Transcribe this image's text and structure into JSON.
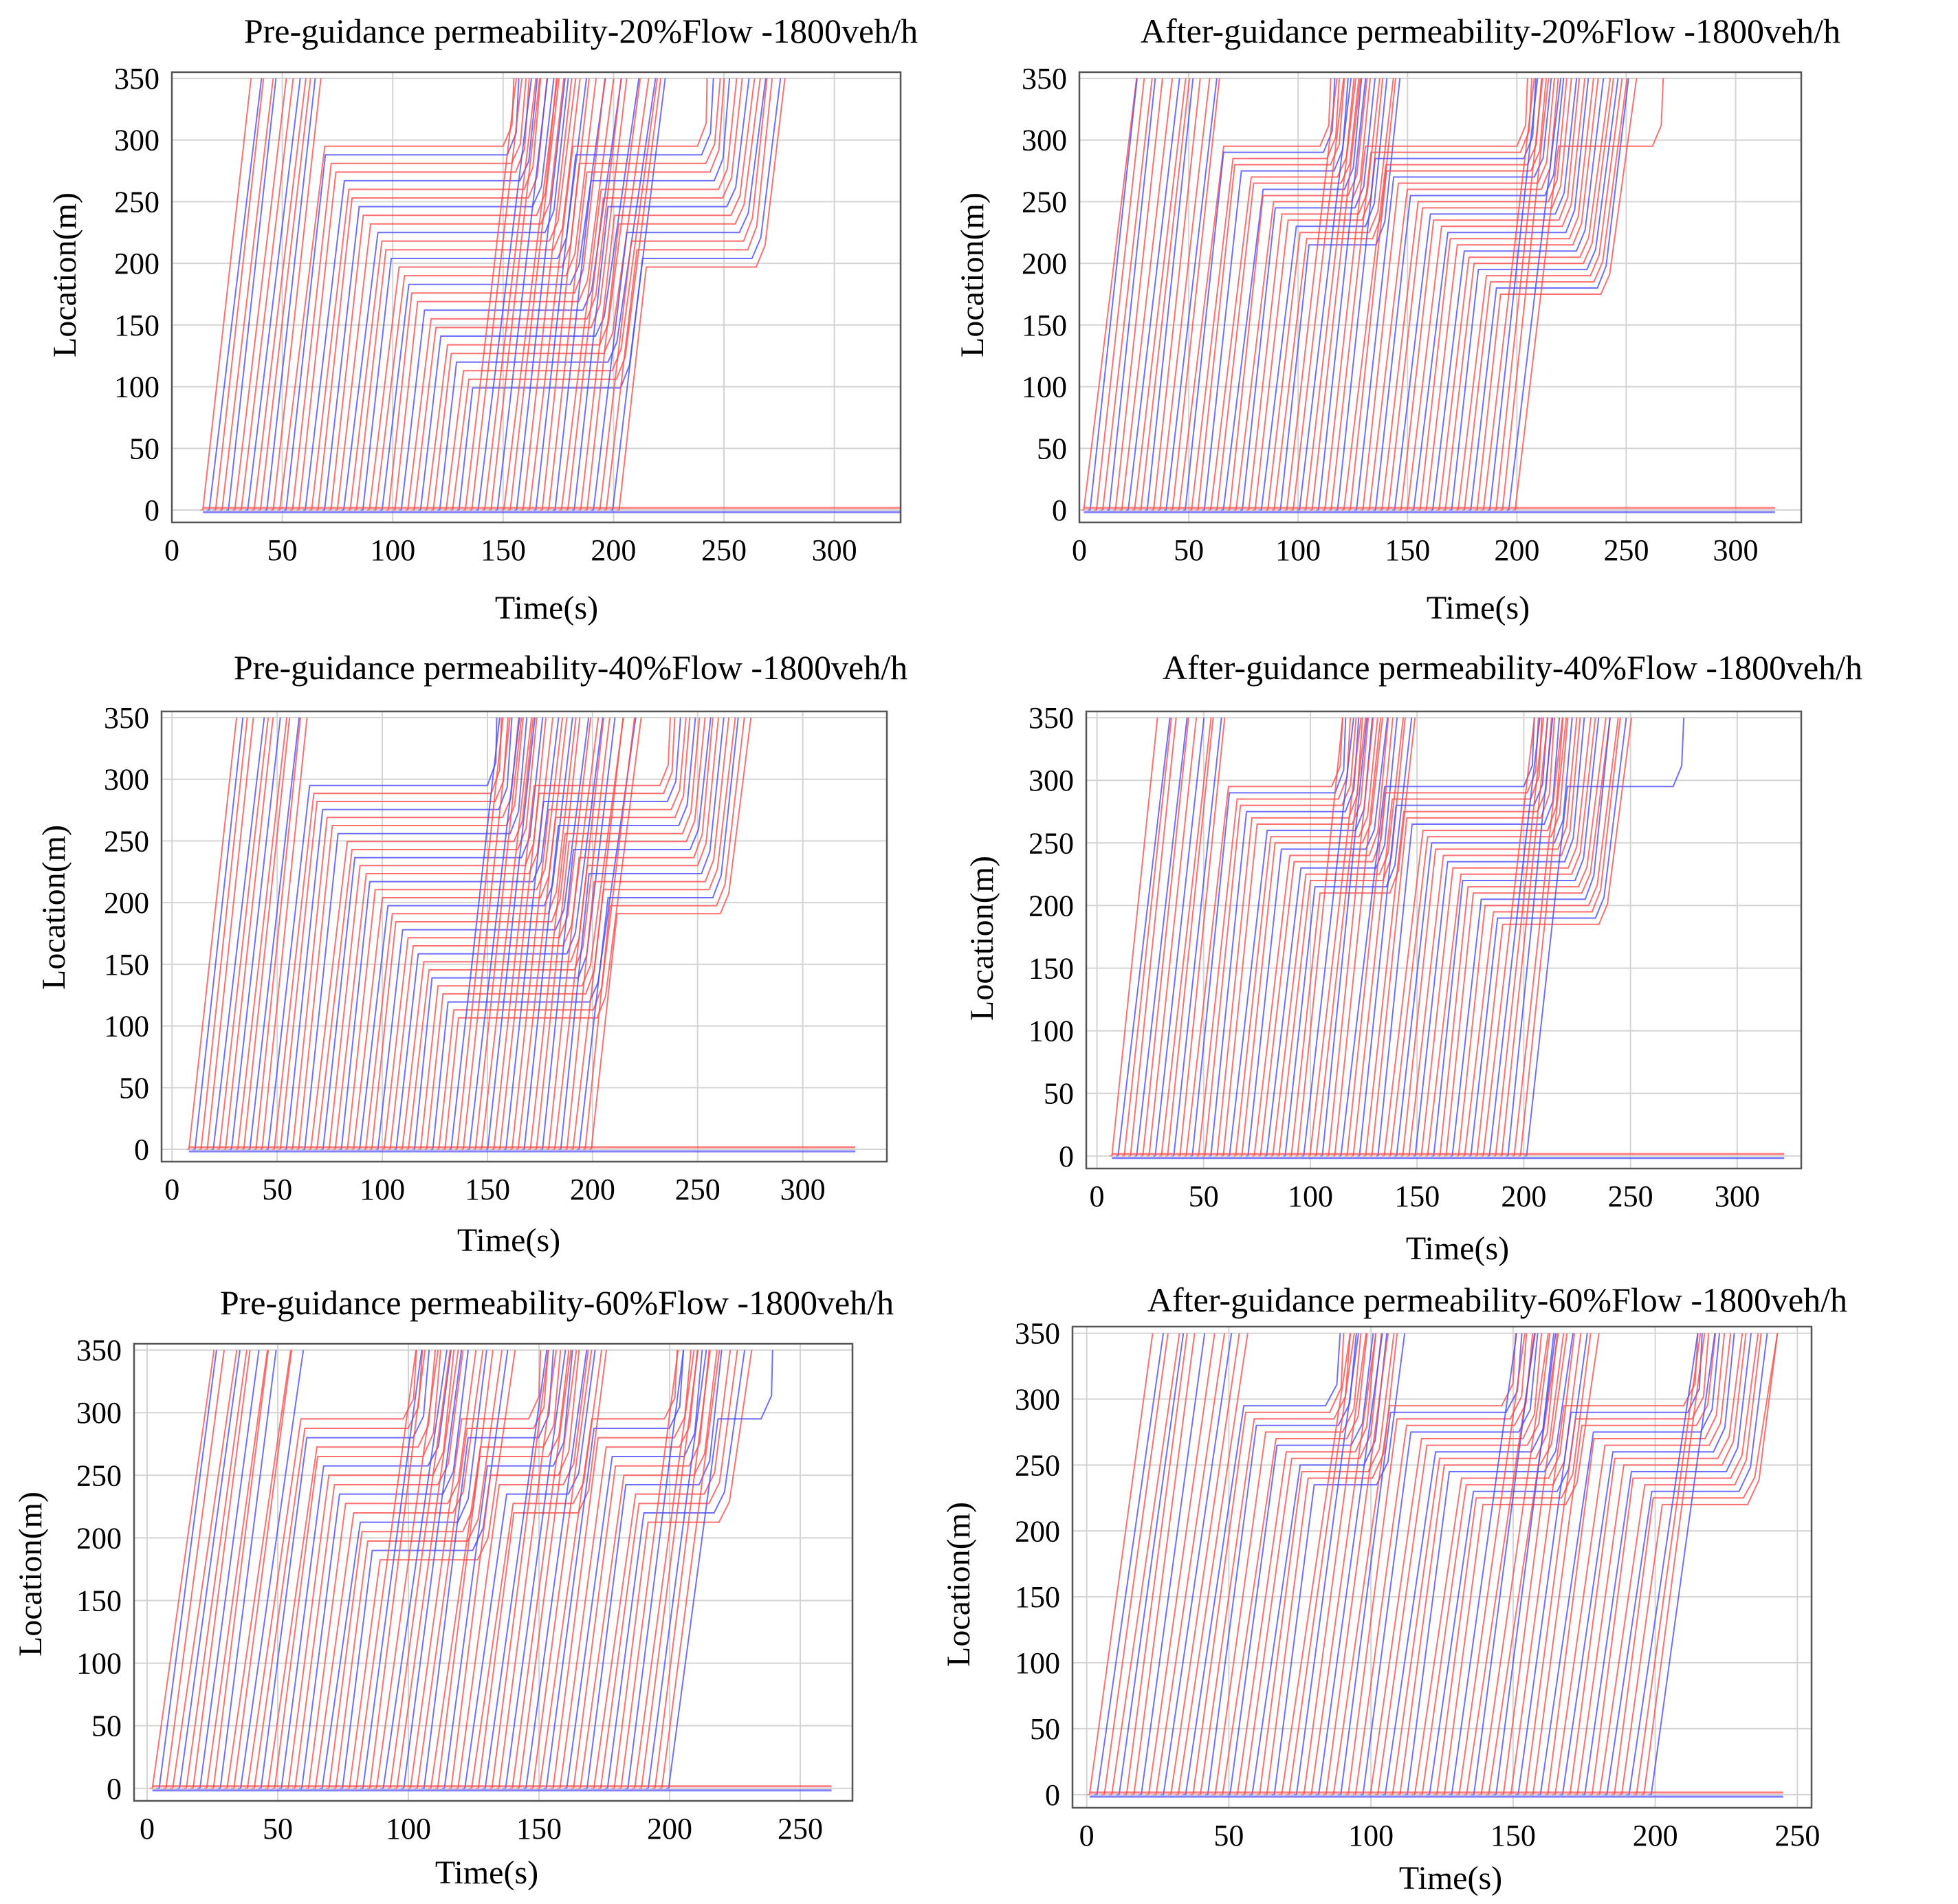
{
  "figure": {
    "description_label": "Vehicle trajectory diagrams, 1800 veh/h"
  },
  "chart_data": [
    {
      "type": "line",
      "panel": "top-left",
      "title": "Pre-guidance permeability-20%Flow -1800veh/h",
      "xlabel": "Time(s)",
      "ylabel": "Location(m)",
      "xlim": [
        0,
        330
      ],
      "ylim": [
        -10,
        355
      ],
      "xticks": [
        0,
        50,
        100,
        150,
        200,
        250,
        300
      ],
      "yticks": [
        0,
        50,
        100,
        150,
        200,
        250,
        300,
        350
      ],
      "grid": true,
      "series_colors": {
        "red": "#ff4b4b",
        "blue": "#4b4bff"
      },
      "pattern": {
        "first_entry": 14,
        "headway": 2.9,
        "free_speed": 15.5,
        "discharge_speed": 11.5,
        "stop_entry_cutoff": 204,
        "end_time": 330,
        "queue_jam_spacing": 7,
        "queue_discharge_headway": 1.9,
        "signals": [
          {
            "stopline": 295,
            "red_start": 68,
            "red_end": 150
          },
          {
            "stopline": 295,
            "red_start": 178,
            "red_end": 238
          },
          {
            "stopline": 295,
            "red_start": 262,
            "red_end": 300
          }
        ]
      }
    },
    {
      "type": "line",
      "panel": "top-right",
      "title": "After-guidance permeability-20%Flow -1800veh/h",
      "xlabel": "Time(s)",
      "ylabel": "Location(m)",
      "xlim": [
        0,
        330
      ],
      "ylim": [
        -10,
        355
      ],
      "xticks": [
        0,
        50,
        100,
        150,
        200,
        250,
        300
      ],
      "yticks": [
        0,
        50,
        100,
        150,
        200,
        250,
        300,
        350
      ],
      "grid": true,
      "series_colors": {
        "red": "#ff4b4b",
        "blue": "#4b4bff"
      },
      "pattern": {
        "first_entry": 2,
        "headway": 2.9,
        "free_speed": 15.5,
        "discharge_speed": 11.5,
        "stop_entry_cutoff": 200,
        "end_time": 318,
        "queue_jam_spacing": 5,
        "queue_discharge_headway": 1.6,
        "signals": [
          {
            "stopline": 292,
            "red_start": 62,
            "red_end": 110
          },
          {
            "stopline": 292,
            "red_start": 130,
            "red_end": 200
          },
          {
            "stopline": 292,
            "red_start": 218,
            "red_end": 262
          }
        ]
      }
    },
    {
      "type": "line",
      "panel": "middle-left",
      "title": "Pre-guidance permeability-40%Flow -1800veh/h",
      "xlabel": "Time(s)",
      "ylabel": "Location(m)",
      "xlim": [
        -5,
        340
      ],
      "ylim": [
        -10,
        355
      ],
      "xticks": [
        0,
        50,
        100,
        150,
        200,
        250,
        300
      ],
      "yticks": [
        0,
        50,
        100,
        150,
        200,
        250,
        300,
        350
      ],
      "grid": true,
      "series_colors": {
        "red": "#ff4b4b",
        "blue": "#4b4bff"
      },
      "pattern": {
        "first_entry": 8,
        "headway": 2.9,
        "free_speed": 15.5,
        "discharge_speed": 11.5,
        "stop_entry_cutoff": 202,
        "end_time": 325,
        "queue_jam_spacing": 6.5,
        "queue_discharge_headway": 1.8,
        "signals": [
          {
            "stopline": 295,
            "red_start": 64,
            "red_end": 150
          },
          {
            "stopline": 295,
            "red_start": 170,
            "red_end": 232
          },
          {
            "stopline": 295,
            "red_start": 254,
            "red_end": 300
          }
        ]
      }
    },
    {
      "type": "line",
      "panel": "middle-right",
      "title": "After-guidance permeability-40%Flow -1800veh/h",
      "xlabel": "Time(s)",
      "ylabel": "Location(m)",
      "xlim": [
        -5,
        330
      ],
      "ylim": [
        -10,
        355
      ],
      "xticks": [
        0,
        50,
        100,
        150,
        200,
        250,
        300
      ],
      "yticks": [
        0,
        50,
        100,
        150,
        200,
        250,
        300,
        350
      ],
      "grid": true,
      "series_colors": {
        "red": "#ff4b4b",
        "blue": "#4b4bff"
      },
      "pattern": {
        "first_entry": 7,
        "headway": 2.9,
        "free_speed": 15.5,
        "discharge_speed": 11.5,
        "stop_entry_cutoff": 202,
        "end_time": 322,
        "queue_jam_spacing": 5,
        "queue_discharge_headway": 1.6,
        "signals": [
          {
            "stopline": 290,
            "red_start": 60,
            "red_end": 110
          },
          {
            "stopline": 290,
            "red_start": 130,
            "red_end": 200
          },
          {
            "stopline": 290,
            "red_start": 220,
            "red_end": 270
          }
        ]
      }
    },
    {
      "type": "line",
      "panel": "bottom-left",
      "title": "Pre-guidance permeability-60%Flow -1800veh/h",
      "xlabel": "Time(s)",
      "ylabel": "Location(m)",
      "xlim": [
        -5,
        270
      ],
      "ylim": [
        -10,
        355
      ],
      "xticks": [
        0,
        50,
        100,
        150,
        200,
        250
      ],
      "yticks": [
        0,
        50,
        100,
        150,
        200,
        250,
        300,
        350
      ],
      "grid": true,
      "series_colors": {
        "red": "#ff4b4b",
        "blue": "#4b4bff"
      },
      "pattern": {
        "first_entry": 2,
        "headway": 2.6,
        "free_speed": 15.5,
        "discharge_speed": 11.5,
        "stop_entry_cutoff": 200,
        "end_time": 262,
        "queue_jam_spacing": 7.5,
        "queue_discharge_headway": 1.9,
        "signals": [
          {
            "stopline": 295,
            "red_start": 58,
            "red_end": 98
          },
          {
            "stopline": 295,
            "red_start": 118,
            "red_end": 146
          },
          {
            "stopline": 295,
            "red_start": 168,
            "red_end": 198
          },
          {
            "stopline": 295,
            "red_start": 216,
            "red_end": 235
          }
        ]
      }
    },
    {
      "type": "line",
      "panel": "bottom-right",
      "title": "After-guidance permeability-60%Flow -1800veh/h",
      "xlabel": "Time(s)",
      "ylabel": "Location(m)",
      "xlim": [
        -5,
        255
      ],
      "ylim": [
        -10,
        355
      ],
      "xticks": [
        0,
        50,
        100,
        150,
        200,
        250
      ],
      "yticks": [
        0,
        50,
        100,
        150,
        200,
        250,
        300,
        350
      ],
      "grid": true,
      "series_colors": {
        "red": "#ff4b4b",
        "blue": "#4b4bff"
      },
      "pattern": {
        "first_entry": 1,
        "headway": 2.6,
        "free_speed": 15.5,
        "discharge_speed": 11.5,
        "stop_entry_cutoff": 200,
        "end_time": 245,
        "queue_jam_spacing": 5,
        "queue_discharge_headway": 1.5,
        "signals": [
          {
            "stopline": 292,
            "red_start": 55,
            "red_end": 84
          },
          {
            "stopline": 292,
            "red_start": 104,
            "red_end": 146
          },
          {
            "stopline": 292,
            "red_start": 165,
            "red_end": 210
          }
        ]
      }
    }
  ]
}
